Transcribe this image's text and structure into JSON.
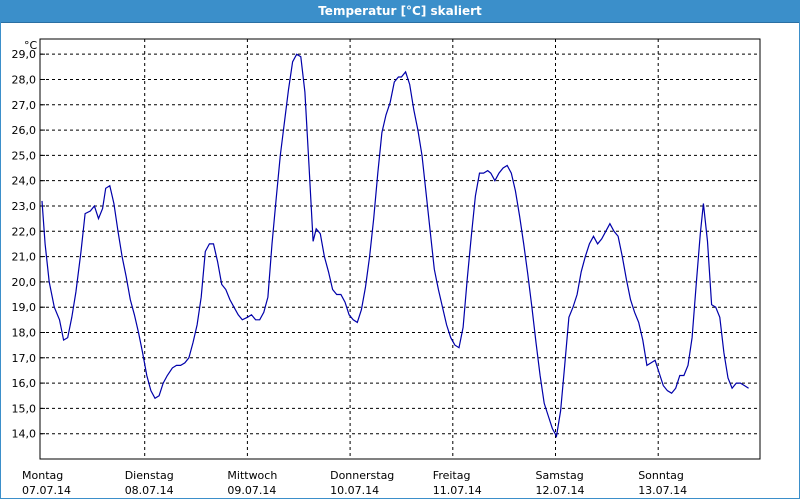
{
  "window": {
    "title": "Temperatur [°C] skaliert"
  },
  "chart_data": {
    "type": "line",
    "title": "Temperatur [°C] skaliert",
    "ylabel": "°C",
    "unit": "°C",
    "ylim": [
      13.0,
      29.6
    ],
    "yticks": [
      "14,0",
      "15,0",
      "16,0",
      "17,0",
      "18,0",
      "19,0",
      "20,0",
      "21,0",
      "22,0",
      "23,0",
      "24,0",
      "25,0",
      "26,0",
      "27,0",
      "28,0",
      "29,0"
    ],
    "ytick_values": [
      14,
      15,
      16,
      17,
      18,
      19,
      20,
      21,
      22,
      23,
      24,
      25,
      26,
      27,
      28,
      29
    ],
    "xlim": [
      0,
      7.2
    ],
    "days": [
      {
        "weekday": "Montag",
        "date": "07.07.14",
        "x": 0
      },
      {
        "weekday": "Dienstag",
        "date": "08.07.14",
        "x": 1
      },
      {
        "weekday": "Mittwoch",
        "date": "09.07.14",
        "x": 2
      },
      {
        "weekday": "Donnerstag",
        "date": "10.07.14",
        "x": 3
      },
      {
        "weekday": "Freitag",
        "date": "11.07.14",
        "x": 4
      },
      {
        "weekday": "Samstag",
        "date": "12.07.14",
        "x": 5
      },
      {
        "weekday": "Sonntag",
        "date": "13.07.14",
        "x": 6
      }
    ],
    "grid": true,
    "series": [
      {
        "color": "#0000aa",
        "points": [
          [
            0.0,
            23.2
          ],
          [
            0.03,
            21.5
          ],
          [
            0.07,
            20.0
          ],
          [
            0.12,
            19.0
          ],
          [
            0.17,
            18.5
          ],
          [
            0.21,
            17.7
          ],
          [
            0.25,
            17.8
          ],
          [
            0.29,
            18.6
          ],
          [
            0.33,
            19.6
          ],
          [
            0.38,
            21.2
          ],
          [
            0.42,
            22.7
          ],
          [
            0.47,
            22.8
          ],
          [
            0.51,
            23.0
          ],
          [
            0.55,
            22.5
          ],
          [
            0.59,
            22.9
          ],
          [
            0.62,
            23.7
          ],
          [
            0.66,
            23.8
          ],
          [
            0.7,
            23.1
          ],
          [
            0.74,
            22.0
          ],
          [
            0.78,
            21.0
          ],
          [
            0.82,
            20.2
          ],
          [
            0.86,
            19.3
          ],
          [
            0.9,
            18.7
          ],
          [
            0.94,
            18.0
          ],
          [
            0.98,
            17.2
          ],
          [
            1.02,
            16.3
          ],
          [
            1.06,
            15.7
          ],
          [
            1.1,
            15.4
          ],
          [
            1.14,
            15.5
          ],
          [
            1.18,
            16.0
          ],
          [
            1.22,
            16.3
          ],
          [
            1.27,
            16.6
          ],
          [
            1.31,
            16.7
          ],
          [
            1.35,
            16.7
          ],
          [
            1.39,
            16.8
          ],
          [
            1.43,
            17.0
          ],
          [
            1.47,
            17.6
          ],
          [
            1.51,
            18.3
          ],
          [
            1.55,
            19.4
          ],
          [
            1.59,
            21.2
          ],
          [
            1.63,
            21.5
          ],
          [
            1.67,
            21.5
          ],
          [
            1.71,
            20.8
          ],
          [
            1.75,
            19.9
          ],
          [
            1.79,
            19.7
          ],
          [
            1.83,
            19.3
          ],
          [
            1.87,
            19.0
          ],
          [
            1.91,
            18.7
          ],
          [
            1.95,
            18.5
          ],
          [
            2.0,
            18.6
          ],
          [
            2.04,
            18.7
          ],
          [
            2.08,
            18.5
          ],
          [
            2.12,
            18.5
          ],
          [
            2.16,
            18.8
          ],
          [
            2.2,
            19.4
          ],
          [
            2.24,
            21.5
          ],
          [
            2.28,
            23.3
          ],
          [
            2.32,
            25.0
          ],
          [
            2.36,
            26.3
          ],
          [
            2.4,
            27.6
          ],
          [
            2.44,
            28.7
          ],
          [
            2.48,
            29.0
          ],
          [
            2.52,
            28.9
          ],
          [
            2.56,
            27.5
          ],
          [
            2.6,
            24.6
          ],
          [
            2.64,
            21.6
          ],
          [
            2.67,
            22.1
          ],
          [
            2.71,
            21.9
          ],
          [
            2.75,
            21.0
          ],
          [
            2.79,
            20.4
          ],
          [
            2.83,
            19.7
          ],
          [
            2.87,
            19.5
          ],
          [
            2.91,
            19.5
          ],
          [
            2.95,
            19.2
          ],
          [
            2.99,
            18.7
          ],
          [
            3.03,
            18.5
          ],
          [
            3.07,
            18.4
          ],
          [
            3.11,
            18.9
          ],
          [
            3.15,
            19.8
          ],
          [
            3.19,
            21.0
          ],
          [
            3.23,
            22.5
          ],
          [
            3.27,
            24.3
          ],
          [
            3.31,
            25.9
          ],
          [
            3.35,
            26.6
          ],
          [
            3.39,
            27.1
          ],
          [
            3.43,
            27.9
          ],
          [
            3.47,
            28.1
          ],
          [
            3.5,
            28.1
          ],
          [
            3.54,
            28.3
          ],
          [
            3.58,
            27.8
          ],
          [
            3.62,
            26.8
          ],
          [
            3.66,
            26.0
          ],
          [
            3.7,
            25.0
          ],
          [
            3.74,
            23.5
          ],
          [
            3.78,
            22.0
          ],
          [
            3.82,
            20.5
          ],
          [
            3.86,
            19.7
          ],
          [
            3.9,
            19.0
          ],
          [
            3.94,
            18.3
          ],
          [
            3.98,
            17.8
          ],
          [
            4.02,
            17.5
          ],
          [
            4.06,
            17.4
          ],
          [
            4.1,
            18.2
          ],
          [
            4.14,
            20.1
          ],
          [
            4.18,
            21.8
          ],
          [
            4.22,
            23.4
          ],
          [
            4.26,
            24.3
          ],
          [
            4.3,
            24.3
          ],
          [
            4.34,
            24.4
          ],
          [
            4.37,
            24.3
          ],
          [
            4.41,
            24.0
          ],
          [
            4.45,
            24.3
          ],
          [
            4.49,
            24.5
          ],
          [
            4.53,
            24.6
          ],
          [
            4.57,
            24.3
          ],
          [
            4.61,
            23.6
          ],
          [
            4.65,
            22.6
          ],
          [
            4.69,
            21.5
          ],
          [
            4.73,
            20.3
          ],
          [
            4.77,
            19.0
          ],
          [
            4.81,
            17.6
          ],
          [
            4.85,
            16.3
          ],
          [
            4.89,
            15.2
          ],
          [
            4.93,
            14.7
          ],
          [
            4.97,
            14.2
          ],
          [
            5.01,
            13.9
          ],
          [
            5.05,
            14.9
          ],
          [
            5.09,
            16.7
          ],
          [
            5.13,
            18.6
          ],
          [
            5.17,
            19.0
          ],
          [
            5.21,
            19.5
          ],
          [
            5.25,
            20.4
          ],
          [
            5.29,
            21.0
          ],
          [
            5.33,
            21.5
          ],
          [
            5.37,
            21.8
          ],
          [
            5.41,
            21.5
          ],
          [
            5.45,
            21.7
          ],
          [
            5.49,
            22.0
          ],
          [
            5.53,
            22.3
          ],
          [
            5.57,
            22.0
          ],
          [
            5.61,
            21.8
          ],
          [
            5.65,
            21.0
          ],
          [
            5.69,
            20.1
          ],
          [
            5.73,
            19.3
          ],
          [
            5.77,
            18.8
          ],
          [
            5.81,
            18.4
          ],
          [
            5.85,
            17.7
          ],
          [
            5.89,
            16.7
          ],
          [
            5.93,
            16.8
          ],
          [
            5.97,
            16.9
          ],
          [
            6.01,
            16.4
          ],
          [
            6.05,
            15.9
          ],
          [
            6.09,
            15.7
          ],
          [
            6.13,
            15.6
          ],
          [
            6.17,
            15.8
          ],
          [
            6.21,
            16.3
          ],
          [
            6.25,
            16.3
          ],
          [
            6.29,
            16.7
          ],
          [
            6.33,
            17.8
          ],
          [
            6.37,
            19.9
          ],
          [
            6.41,
            21.9
          ],
          [
            6.44,
            23.1
          ],
          [
            6.48,
            21.6
          ],
          [
            6.52,
            19.1
          ],
          [
            6.56,
            19.0
          ],
          [
            6.6,
            18.6
          ],
          [
            6.64,
            17.2
          ],
          [
            6.68,
            16.2
          ],
          [
            6.72,
            15.8
          ],
          [
            6.76,
            16.0
          ],
          [
            6.8,
            16.0
          ],
          [
            6.84,
            15.9
          ],
          [
            6.88,
            15.8
          ]
        ]
      }
    ]
  }
}
